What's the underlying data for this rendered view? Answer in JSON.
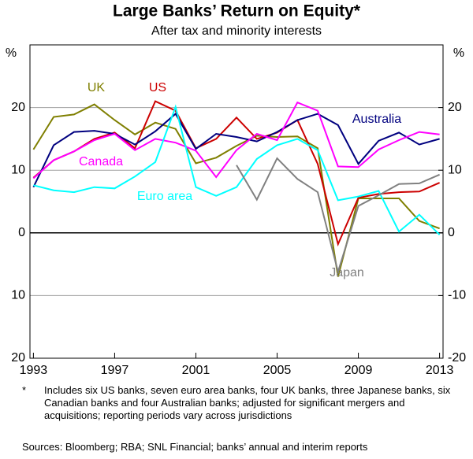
{
  "chart_data": {
    "type": "line",
    "title": "Large Banks’ Return on Equity*",
    "subtitle": "After tax and minority interests",
    "y_unit": "%",
    "y2_unit": "%",
    "x": [
      1993,
      1994,
      1995,
      1996,
      1997,
      1998,
      1999,
      2000,
      2001,
      2002,
      2003,
      2004,
      2005,
      2006,
      2007,
      2008,
      2009,
      2010,
      2011,
      2012,
      2013
    ],
    "xlim": [
      1992.83,
      2013.17
    ],
    "xticks": [
      1993,
      1997,
      2001,
      2005,
      2009,
      2013
    ],
    "ylim": [
      -20,
      30
    ],
    "yticks": [
      {
        "value": -20,
        "label": "20"
      },
      {
        "value": -10,
        "label": "10"
      },
      0,
      10,
      20
    ],
    "y2lim": [
      -20,
      30
    ],
    "y2ticks": [
      -20,
      -10,
      0,
      10,
      20
    ],
    "grid": true,
    "series": [
      {
        "name": "UK",
        "color": "#7f7f00",
        "values": [
          13.3,
          18.5,
          18.9,
          20.5,
          18,
          15.7,
          17.6,
          16.6,
          11.1,
          12,
          13.9,
          15.5,
          15.3,
          15.4,
          13.5,
          -7,
          5.5,
          5.5,
          5.5,
          1.9,
          0.7
        ]
      },
      {
        "name": "US",
        "color": "#cc0000",
        "values": [
          8.8,
          11.6,
          13,
          15,
          16,
          13.5,
          21,
          19.5,
          13.5,
          15,
          18.4,
          15,
          16,
          18,
          11,
          -1.8,
          5.6,
          6.2,
          6.5,
          6.6,
          8
        ]
      },
      {
        "name": "Australia",
        "color": "#00007f",
        "values": [
          7.3,
          14,
          16.1,
          16.3,
          15.8,
          14.1,
          16.2,
          19,
          13.4,
          15.8,
          15.3,
          14.6,
          16.1,
          18,
          19,
          17.2,
          11,
          14.7,
          16,
          14.1,
          15
        ]
      },
      {
        "name": "Canada",
        "color": "#ff00ff",
        "values": [
          8.7,
          11.6,
          13,
          14.8,
          15.8,
          13.2,
          15,
          14.4,
          13.1,
          8.9,
          13.2,
          15.8,
          14.8,
          20.8,
          19.5,
          10.6,
          10.5,
          13.3,
          14.8,
          16.1,
          15.7
        ]
      },
      {
        "name": "Euro area",
        "color": "#00ffff",
        "values": [
          7.6,
          6.8,
          6.5,
          7.3,
          7.1,
          9,
          11.3,
          20.1,
          7.3,
          5.9,
          7.3,
          11.8,
          14,
          15,
          13.2,
          5.2,
          5.8,
          6.7,
          0.2,
          2.9,
          -0.3
        ]
      },
      {
        "name": "Japan",
        "color": "#808080",
        "values": [
          null,
          null,
          null,
          null,
          null,
          null,
          null,
          null,
          null,
          null,
          10.8,
          5.3,
          11.9,
          8.6,
          6.5,
          -6.2,
          4.3,
          6,
          7.8,
          7.9,
          9.3
        ]
      }
    ],
    "footnote_marker": "*",
    "footnote": "Includes six US banks, seven euro area banks, four UK banks, three Japanese banks, six Canadian banks and four Australian banks; adjusted for significant mergers and acquisitions; reporting periods vary across jurisdictions",
    "sources": "Sources: Bloomberg; RBA; SNL Financial; banks’ annual and interim reports"
  }
}
